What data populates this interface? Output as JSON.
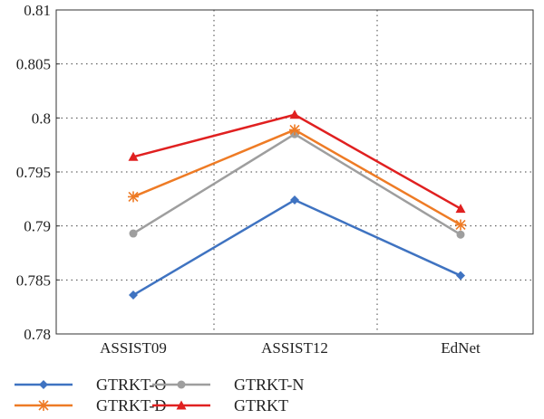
{
  "chart_data": {
    "type": "line",
    "title": "",
    "xlabel": "",
    "ylabel": "",
    "categories": [
      "ASSIST09",
      "ASSIST12",
      "EdNet"
    ],
    "ylim": [
      0.78,
      0.81
    ],
    "yticks": [
      0.78,
      0.785,
      0.79,
      0.795,
      0.8,
      0.805,
      0.81
    ],
    "ytick_labels": [
      "0.78",
      "0.785",
      "0.79",
      "0.795",
      "0.8",
      "0.805",
      "0.81"
    ],
    "grid": true,
    "legend_position": "bottom",
    "series": [
      {
        "name": "GTRKT-O",
        "values": [
          0.7836,
          0.7924,
          0.7854
        ],
        "color": "#3f73c1",
        "marker": "diamond"
      },
      {
        "name": "GTRKT-N",
        "values": [
          0.7893,
          0.7985,
          0.7892
        ],
        "color": "#9e9e9e",
        "marker": "circle"
      },
      {
        "name": "GTRKT-D",
        "values": [
          0.7927,
          0.7989,
          0.7901
        ],
        "color": "#ee7b25",
        "marker": "asterisk"
      },
      {
        "name": "GTRKT",
        "values": [
          0.7964,
          0.8003,
          0.7916
        ],
        "color": "#e02020",
        "marker": "triangle"
      }
    ]
  }
}
